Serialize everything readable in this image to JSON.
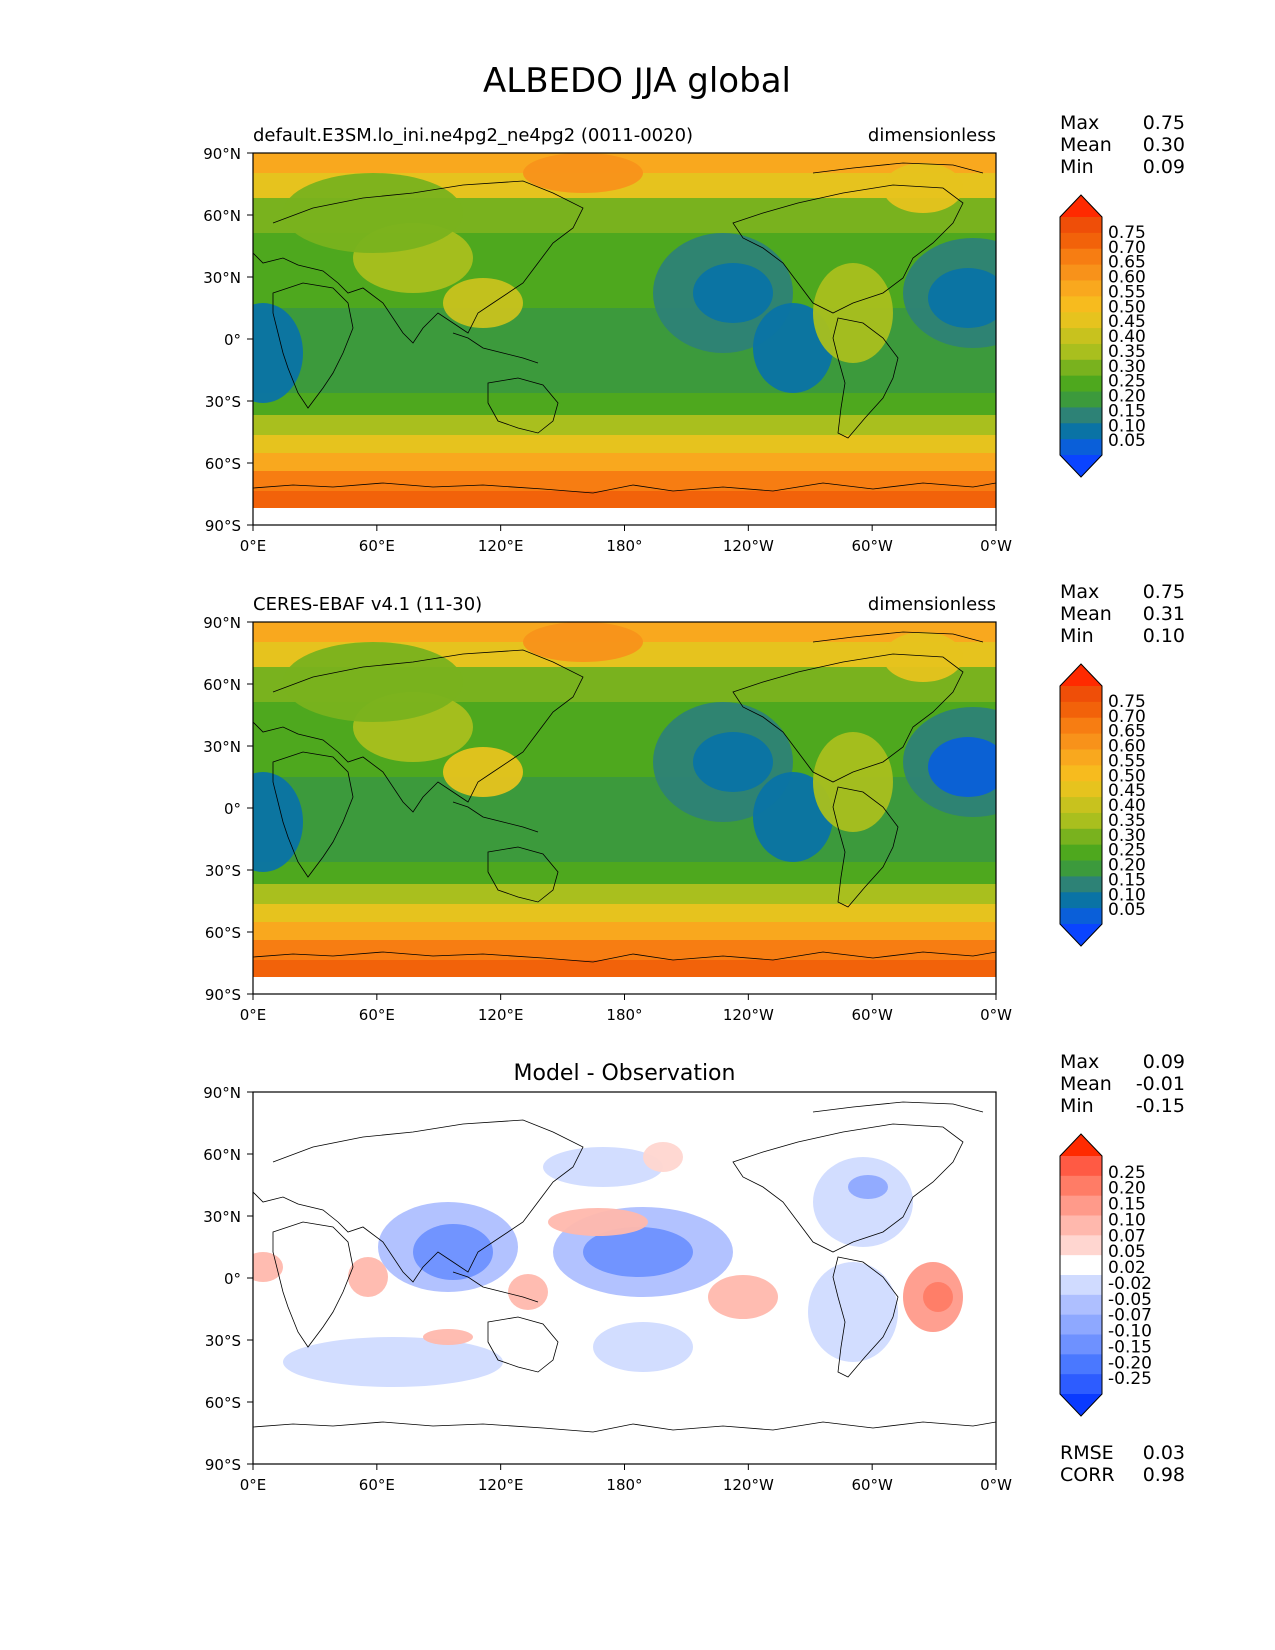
{
  "title": "ALBEDO JJA global",
  "x_ticks": [
    "0°E",
    "60°E",
    "120°E",
    "180°",
    "120°W",
    "60°W",
    "0°W"
  ],
  "y_ticks": [
    "90°N",
    "60°N",
    "30°N",
    "0°",
    "30°S",
    "60°S",
    "90°S"
  ],
  "stat_labels": {
    "max": "Max",
    "mean": "Mean",
    "min": "Min",
    "rmse": "RMSE",
    "corr": "CORR"
  },
  "colors": {
    "field_levels": [
      "#0a44ff",
      "#0a5fd9",
      "#0a73a5",
      "#2d8276",
      "#3c9a3c",
      "#4ea81e",
      "#79b21e",
      "#a9bf1e",
      "#c8c21e",
      "#e6c31e",
      "#f7bb1e",
      "#f9a81e",
      "#f8921a",
      "#f77d12",
      "#f2620a",
      "#ef4e08",
      "#ff2a00"
    ],
    "diff_levels": [
      "#0a3aff",
      "#2d5cff",
      "#4a78ff",
      "#6e91ff",
      "#8ea8ff",
      "#aebfff",
      "#d0dbff",
      "#ffffff",
      "#ffd6d0",
      "#ffb8ad",
      "#ff9a8a",
      "#ff7c66",
      "#ff5a44",
      "#ff2a00"
    ]
  },
  "panels": [
    {
      "id": "model",
      "title_left": "default.E3SM.lo_ini.ne4pg2_ne4pg2 (0011-0020)",
      "title_center": "",
      "title_right": "dimensionless",
      "kind": "field",
      "stats": {
        "max": "0.75",
        "mean": "0.30",
        "min": "0.09"
      },
      "colorbar_labels": [
        "0.75",
        "0.70",
        "0.65",
        "0.60",
        "0.55",
        "0.50",
        "0.45",
        "0.40",
        "0.35",
        "0.30",
        "0.25",
        "0.20",
        "0.15",
        "0.10",
        "0.05"
      ]
    },
    {
      "id": "obs",
      "title_left": "CERES-EBAF v4.1 (11-30)",
      "title_center": "",
      "title_right": "dimensionless",
      "kind": "field",
      "stats": {
        "max": "0.75",
        "mean": "0.31",
        "min": "0.10"
      },
      "colorbar_labels": [
        "0.75",
        "0.70",
        "0.65",
        "0.60",
        "0.55",
        "0.50",
        "0.45",
        "0.40",
        "0.35",
        "0.30",
        "0.25",
        "0.20",
        "0.15",
        "0.10",
        "0.05"
      ]
    },
    {
      "id": "diff",
      "title_left": "",
      "title_center": "Model - Observation",
      "title_right": "",
      "kind": "diff",
      "stats": {
        "max": "0.09",
        "mean": "-0.01",
        "min": "-0.15"
      },
      "colorbar_labels": [
        "0.25",
        "0.20",
        "0.15",
        "0.10",
        "0.07",
        "0.05",
        "0.02",
        "-0.02",
        "-0.05",
        "-0.07",
        "-0.10",
        "-0.15",
        "-0.20",
        "-0.25"
      ],
      "error_stats": {
        "rmse": "0.03",
        "corr": "0.98"
      }
    }
  ]
}
